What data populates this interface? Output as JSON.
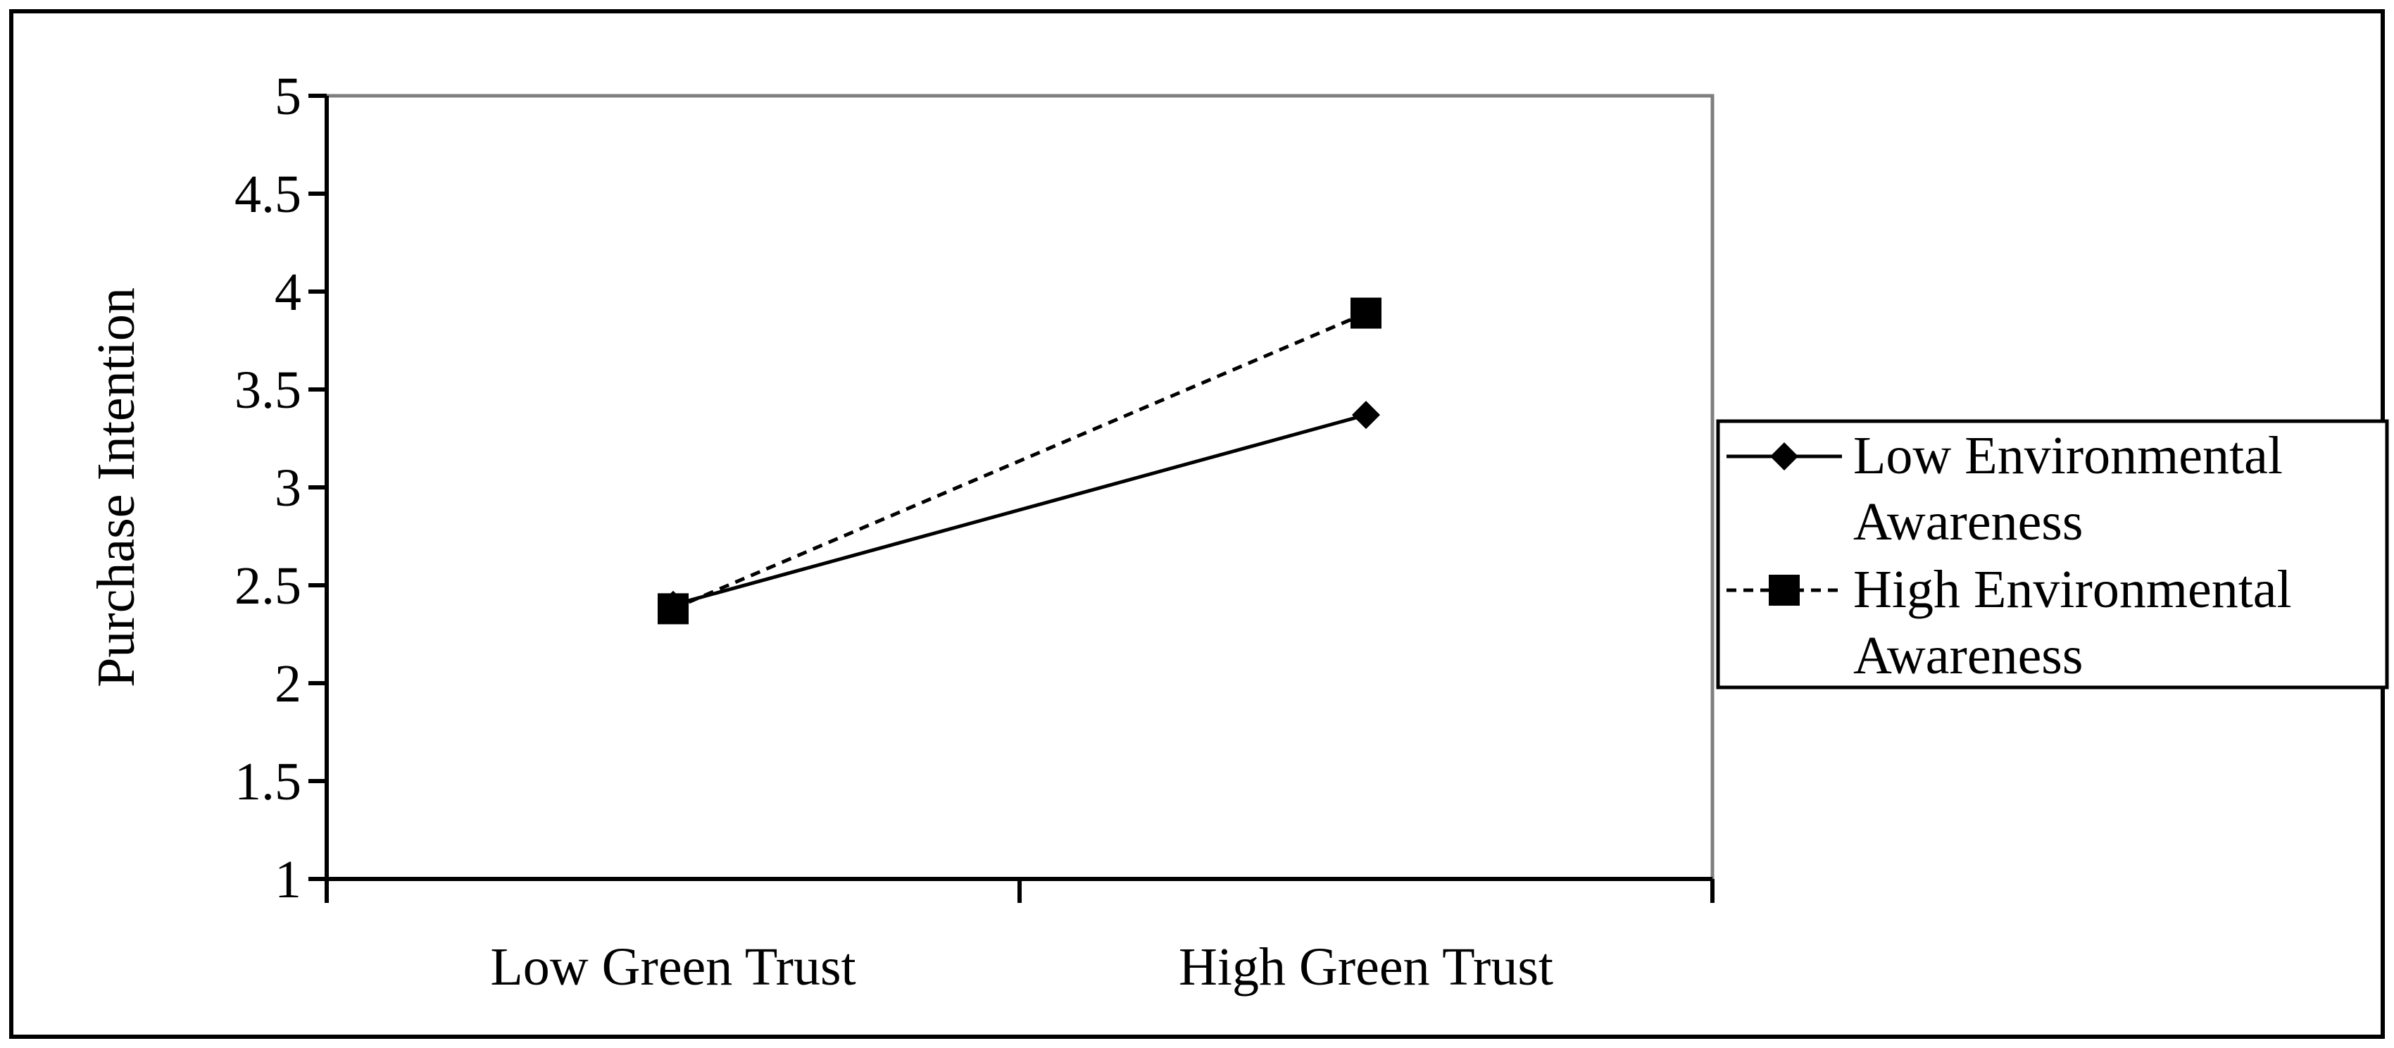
{
  "chart_data": {
    "type": "line",
    "title": "",
    "xlabel": "",
    "ylabel": "Purchase Intention",
    "categories": [
      "Low Green Trust",
      "High Green Trust"
    ],
    "ylim": [
      1,
      5
    ],
    "yticks": [
      "1",
      "1.5",
      "2",
      "2.5",
      "3",
      "3.5",
      "4",
      "4.5",
      "5"
    ],
    "grid": false,
    "legend_position": "right",
    "series": [
      {
        "name": "Low Environmental Awareness",
        "legend_lines": [
          "Low Environmental",
          "Awareness"
        ],
        "values": [
          2.4,
          3.37
        ],
        "marker": "diamond",
        "line_style": "solid",
        "color": "#000000"
      },
      {
        "name": "High Environmental Awareness",
        "legend_lines": [
          "High Environmental",
          "Awareness"
        ],
        "values": [
          2.38,
          3.89
        ],
        "marker": "square",
        "line_style": "dashed",
        "color": "#000000"
      }
    ]
  }
}
